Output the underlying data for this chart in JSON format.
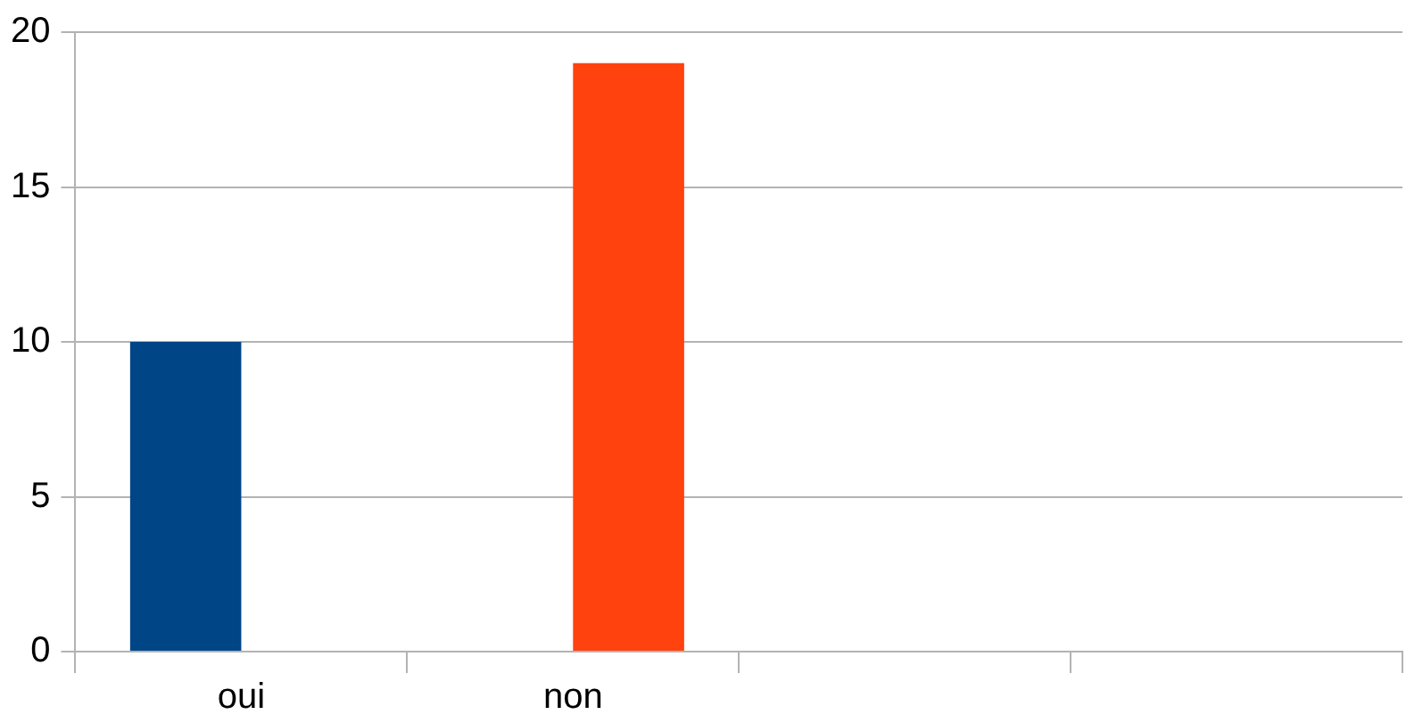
{
  "chart_data": {
    "type": "bar",
    "categories": [
      "oui",
      "non",
      null,
      null
    ],
    "series": [
      {
        "color": "#004586",
        "values": [
          10,
          null,
          null,
          null
        ]
      },
      {
        "color": "#ff420e",
        "values": [
          null,
          19,
          null,
          null
        ]
      }
    ],
    "ylim": [
      0,
      20
    ],
    "yticks": [
      0,
      5,
      10,
      15,
      20
    ],
    "grid": "y",
    "legend": false
  }
}
